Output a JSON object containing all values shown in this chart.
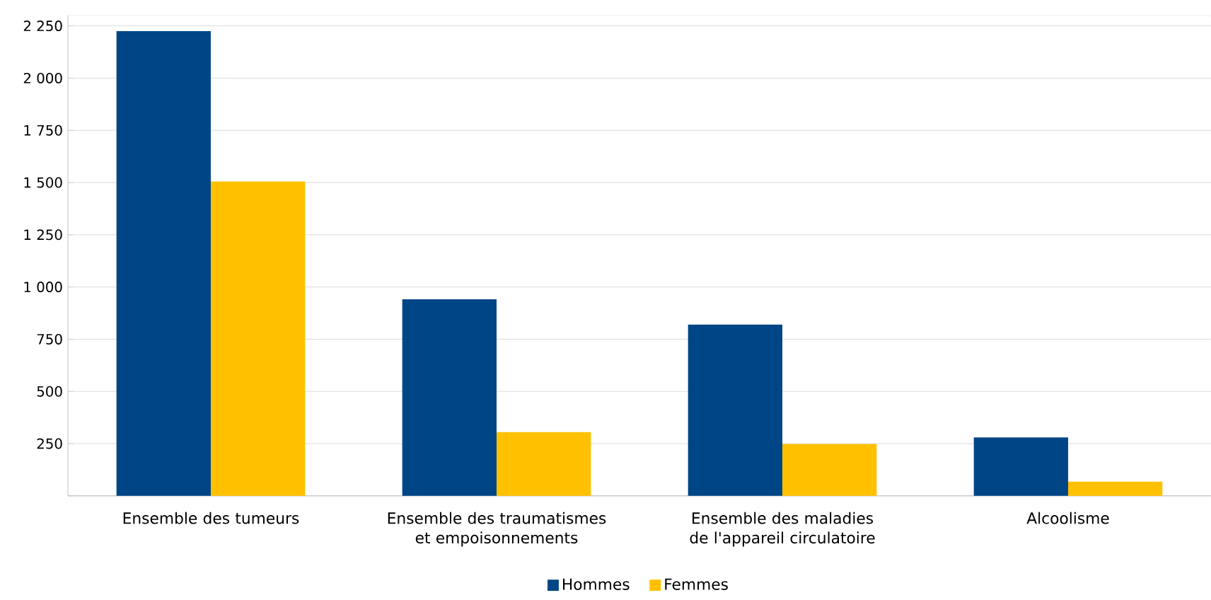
{
  "chart_data": {
    "type": "bar",
    "categories": [
      "Ensemble des tumeurs",
      "Ensemble des traumatismes et empoisonnements",
      "Ensemble des maladies de l'appareil circulatoire",
      "Alcoolisme"
    ],
    "series": [
      {
        "name": "Hommes",
        "color": "#004586",
        "values": [
          2225,
          941,
          820,
          280
        ]
      },
      {
        "name": "Femmes",
        "color": "#ffc000",
        "values": [
          1505,
          305,
          248,
          68
        ]
      }
    ],
    "ylim": [
      0,
      2300
    ],
    "yticks": [
      {
        "value": 0,
        "label": null
      },
      250,
      500,
      750,
      {
        "value": 1000,
        "label": "1 000"
      },
      {
        "value": 1250,
        "label": "1 250"
      },
      {
        "value": 1500,
        "label": "1 500"
      },
      {
        "value": 1750,
        "label": "1 750"
      },
      {
        "value": 2000,
        "label": "2 000"
      },
      {
        "value": 2250,
        "label": "2 250"
      }
    ],
    "grid": "y",
    "legend": "bottom"
  }
}
